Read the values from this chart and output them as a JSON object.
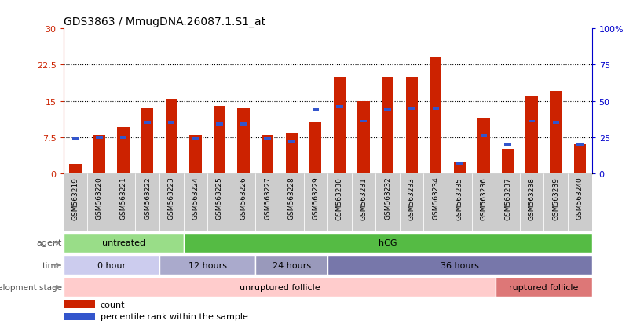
{
  "title": "GDS3863 / MmugDNA.26087.1.S1_at",
  "samples": [
    "GSM563219",
    "GSM563220",
    "GSM563221",
    "GSM563222",
    "GSM563223",
    "GSM563224",
    "GSM563225",
    "GSM563226",
    "GSM563227",
    "GSM563228",
    "GSM563229",
    "GSM563230",
    "GSM563231",
    "GSM563232",
    "GSM563233",
    "GSM563234",
    "GSM563235",
    "GSM563236",
    "GSM563237",
    "GSM563238",
    "GSM563239",
    "GSM563240"
  ],
  "count_values": [
    2.0,
    8.0,
    9.5,
    13.5,
    15.5,
    8.0,
    14.0,
    13.5,
    8.0,
    8.5,
    10.5,
    20.0,
    15.0,
    20.0,
    20.0,
    24.0,
    2.5,
    11.5,
    5.0,
    16.0,
    17.0,
    6.0
  ],
  "percentile_values": [
    24,
    25,
    25,
    35,
    35,
    24,
    34,
    34,
    24,
    22,
    44,
    46,
    36,
    44,
    45,
    45,
    7,
    26,
    20,
    36,
    35,
    20
  ],
  "ylim_left": [
    0,
    30
  ],
  "ylim_right": [
    0,
    100
  ],
  "yticks_left": [
    0,
    7.5,
    15,
    22.5,
    30
  ],
  "ytick_labels_left": [
    "0",
    "7.5",
    "15",
    "22.5",
    "30"
  ],
  "yticks_right": [
    0,
    25,
    50,
    75,
    100
  ],
  "ytick_labels_right": [
    "0",
    "25",
    "50",
    "75",
    "100%"
  ],
  "bar_color_red": "#cc2200",
  "bar_color_blue": "#3355cc",
  "bar_width": 0.5,
  "agent_groups": [
    {
      "label": "untreated",
      "start": 0,
      "end": 5,
      "color": "#99dd88"
    },
    {
      "label": "hCG",
      "start": 5,
      "end": 22,
      "color": "#55bb44"
    }
  ],
  "time_groups": [
    {
      "label": "0 hour",
      "start": 0,
      "end": 4,
      "color": "#ccccee"
    },
    {
      "label": "12 hours",
      "start": 4,
      "end": 8,
      "color": "#aaaacc"
    },
    {
      "label": "24 hours",
      "start": 8,
      "end": 11,
      "color": "#9999bb"
    },
    {
      "label": "36 hours",
      "start": 11,
      "end": 22,
      "color": "#7777aa"
    }
  ],
  "dev_groups": [
    {
      "label": "unruptured follicle",
      "start": 0,
      "end": 18,
      "color": "#ffcccc"
    },
    {
      "label": "ruptured follicle",
      "start": 18,
      "end": 22,
      "color": "#dd7777"
    }
  ],
  "background_color": "#ffffff",
  "left_axis_color": "#cc2200",
  "right_axis_color": "#0000cc",
  "tick_bg_color": "#cccccc",
  "row_label_color": "#555555",
  "row_arrow_color": "#888888"
}
